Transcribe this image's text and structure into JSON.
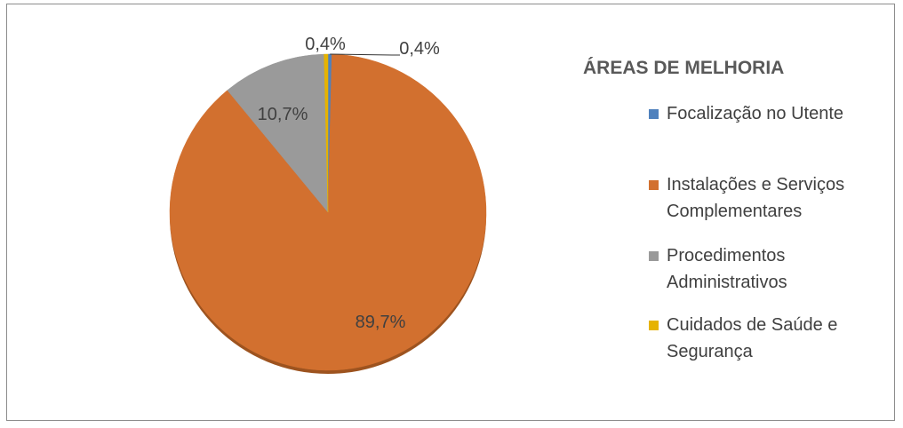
{
  "chart_data": {
    "type": "pie",
    "title": "",
    "legend_title": "ÁREAS DE MELHORIA",
    "legend_position": "right",
    "slices": [
      {
        "name": "Focalização no Utente",
        "value": 0.4,
        "label": "0,4%",
        "color": "#4f81bd"
      },
      {
        "name": "Instalações e Serviços Complementares",
        "value": 89.7,
        "label": "89,7%",
        "color": "#d2702f"
      },
      {
        "name": "Procedimentos Administrativos",
        "value": 10.7,
        "label": "10,7%",
        "color": "#9a9a9a"
      },
      {
        "name": "Cuidados de Saúde e Segurança",
        "value": 0.4,
        "label": "0,4%",
        "color": "#e6b300"
      }
    ],
    "legend_entries": [
      {
        "lines": [
          "Focalização no Utente"
        ]
      },
      {
        "lines": [
          "Instalações e Serviços",
          "Complementares"
        ]
      },
      {
        "lines": [
          "Procedimentos",
          "Administrativos"
        ]
      },
      {
        "lines": [
          "Cuidados de Saúde e",
          "Segurança"
        ]
      }
    ]
  }
}
